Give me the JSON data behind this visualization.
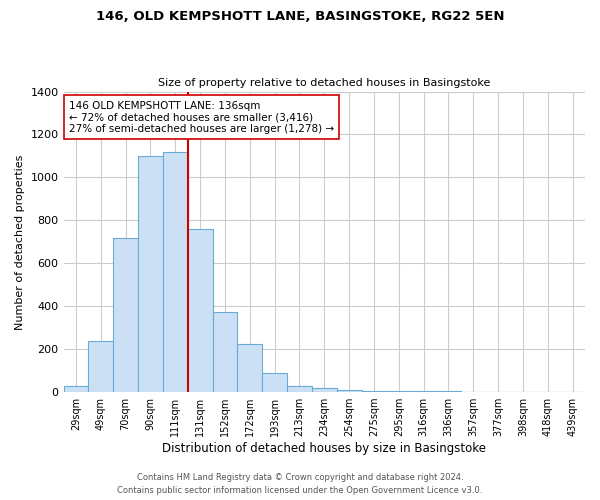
{
  "title": "146, OLD KEMPSHOTT LANE, BASINGSTOKE, RG22 5EN",
  "subtitle": "Size of property relative to detached houses in Basingstoke",
  "xlabel": "Distribution of detached houses by size in Basingstoke",
  "ylabel": "Number of detached properties",
  "bin_labels": [
    "29sqm",
    "49sqm",
    "70sqm",
    "90sqm",
    "111sqm",
    "131sqm",
    "152sqm",
    "172sqm",
    "193sqm",
    "213sqm",
    "234sqm",
    "254sqm",
    "275sqm",
    "295sqm",
    "316sqm",
    "336sqm",
    "357sqm",
    "377sqm",
    "398sqm",
    "418sqm",
    "439sqm"
  ],
  "bar_heights": [
    30,
    240,
    720,
    1100,
    1120,
    760,
    375,
    225,
    90,
    30,
    20,
    10,
    5,
    5,
    3,
    3,
    2,
    2,
    1,
    1,
    0
  ],
  "bar_color": "#cce0f5",
  "bar_edge_color": "#6aaad4",
  "vline_color": "#cc0000",
  "annotation_text": "146 OLD KEMPSHOTT LANE: 136sqm\n← 72% of detached houses are smaller (3,416)\n27% of semi-detached houses are larger (1,278) →",
  "annotation_box_color": "#ffffff",
  "annotation_box_edge": "#cc0000",
  "ylim": [
    0,
    1400
  ],
  "yticks": [
    0,
    200,
    400,
    600,
    800,
    1000,
    1200,
    1400
  ],
  "grid_color": "#cccccc",
  "background_color": "#ffffff",
  "footer_line1": "Contains HM Land Registry data © Crown copyright and database right 2024.",
  "footer_line2": "Contains public sector information licensed under the Open Government Licence v3.0."
}
